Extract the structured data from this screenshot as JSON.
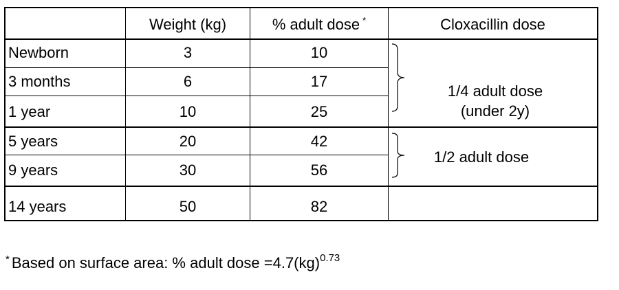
{
  "table": {
    "headers": {
      "col0": "",
      "weight": "Weight (kg)",
      "adult_pct": "% adult dose",
      "adult_pct_mark": "*",
      "cloxacillin": "Cloxacillin dose"
    },
    "rows": [
      {
        "age": "Newborn",
        "weight": "3",
        "pct": "10"
      },
      {
        "age": "3 months",
        "weight": "6",
        "pct": "17"
      },
      {
        "age": "1 year",
        "weight": "10",
        "pct": "25"
      },
      {
        "age": "5 years",
        "weight": "20",
        "pct": "42"
      },
      {
        "age": "9 years",
        "weight": "30",
        "pct": "56"
      },
      {
        "age": "14 years",
        "weight": "50",
        "pct": "82"
      }
    ],
    "group_a": {
      "line1": "1/4 adult dose",
      "line2": "(under 2y)"
    },
    "group_b": {
      "line1": "1/2 adult dose"
    }
  },
  "footnote": {
    "mark": "*",
    "text": "Based on surface area: % adult dose =4.7(kg)",
    "exponent": "0.73"
  }
}
